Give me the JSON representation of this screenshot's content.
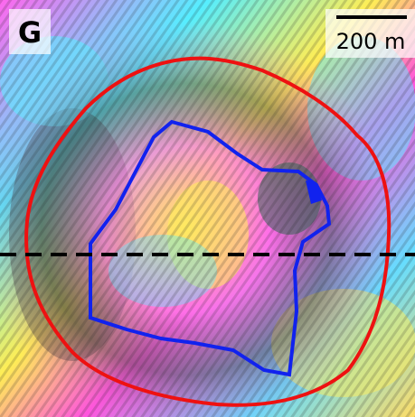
{
  "panel_label": "G",
  "scale_bar": {
    "label": "200 m"
  }
}
